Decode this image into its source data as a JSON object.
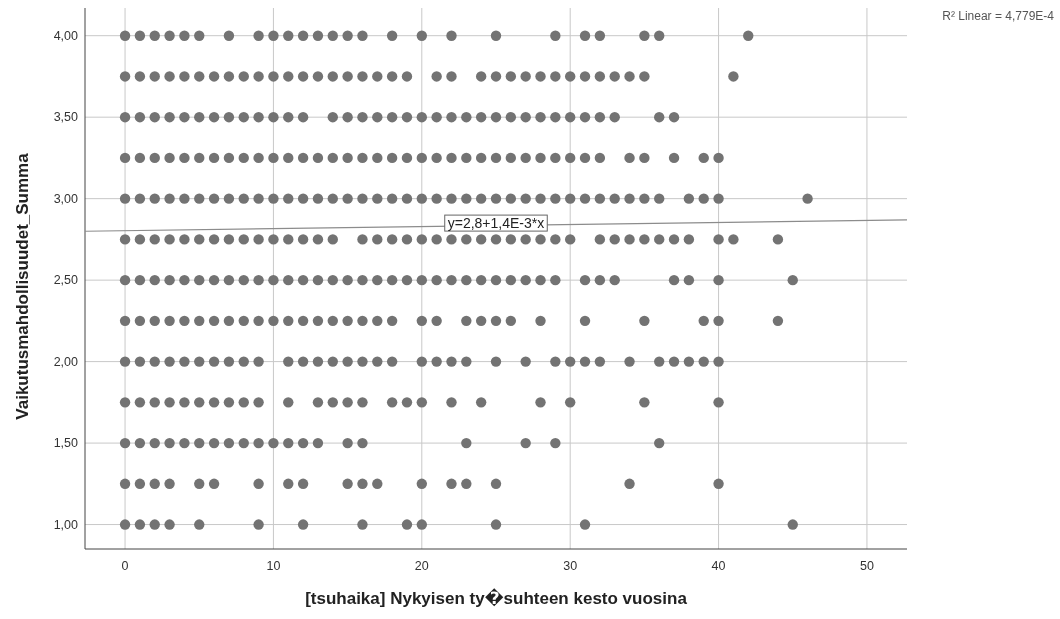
{
  "chart_data": {
    "type": "scatter",
    "xlabel": "[tsuhaika] Nykyisen ty�suhteen kesto vuosina",
    "ylabel": "Vaikutusmahdollisuudet_Summa",
    "xlim": [
      -2.7,
      52.7
    ],
    "ylim": [
      0.85,
      4.17
    ],
    "xticks": [
      0,
      10,
      20,
      30,
      40,
      50
    ],
    "yticks": [
      {
        "value": 1,
        "label": "1,00"
      },
      {
        "value": 1.5,
        "label": "1,50"
      },
      {
        "value": 2,
        "label": "2,00"
      },
      {
        "value": 2.5,
        "label": "2,50"
      },
      {
        "value": 3,
        "label": "3,00"
      },
      {
        "value": 3.5,
        "label": "3,50"
      },
      {
        "value": 4,
        "label": "4,00"
      }
    ],
    "grid": true,
    "marker": "circle",
    "annotations": [
      {
        "text": "y=2,8+1,4E-3*x",
        "x": 25,
        "y": 2.85
      },
      "R² Linear = 4,779E-4"
    ],
    "series": [
      {
        "color": "#737373",
        "x": [
          0,
          1,
          2,
          3,
          4,
          5,
          7,
          9,
          10,
          11,
          12,
          13,
          14,
          15,
          16,
          18,
          20,
          22,
          25,
          29,
          31,
          32,
          35,
          36,
          42,
          0,
          1,
          2,
          3,
          4,
          5,
          6,
          7,
          8,
          9,
          10,
          11,
          12,
          13,
          14,
          15,
          16,
          17,
          18,
          19,
          21,
          22,
          24,
          25,
          26,
          27,
          28,
          29,
          30,
          31,
          32,
          33,
          34,
          35,
          41,
          0,
          1,
          2,
          3,
          4,
          5,
          6,
          7,
          8,
          9,
          10,
          11,
          12,
          14,
          15,
          16,
          17,
          18,
          19,
          20,
          21,
          22,
          23,
          24,
          25,
          26,
          27,
          28,
          29,
          30,
          31,
          32,
          33,
          36,
          37,
          0,
          1,
          2,
          3,
          4,
          5,
          6,
          7,
          8,
          9,
          10,
          11,
          12,
          13,
          14,
          15,
          16,
          17,
          18,
          19,
          20,
          21,
          22,
          23,
          24,
          25,
          26,
          27,
          28,
          29,
          30,
          31,
          32,
          34,
          35,
          37,
          39,
          40,
          0,
          1,
          2,
          3,
          4,
          5,
          6,
          7,
          8,
          9,
          10,
          11,
          12,
          13,
          14,
          15,
          16,
          17,
          18,
          19,
          20,
          21,
          22,
          23,
          24,
          25,
          26,
          27,
          28,
          29,
          30,
          31,
          32,
          33,
          34,
          35,
          36,
          38,
          39,
          40,
          46,
          0,
          1,
          2,
          3,
          4,
          5,
          6,
          7,
          8,
          9,
          10,
          11,
          12,
          13,
          14,
          16,
          17,
          18,
          19,
          20,
          21,
          22,
          23,
          24,
          25,
          26,
          27,
          28,
          29,
          30,
          32,
          33,
          34,
          35,
          36,
          37,
          38,
          40,
          41,
          44,
          0,
          1,
          2,
          3,
          4,
          5,
          6,
          7,
          8,
          9,
          10,
          11,
          12,
          13,
          14,
          15,
          16,
          17,
          18,
          19,
          20,
          21,
          22,
          23,
          24,
          25,
          26,
          27,
          28,
          29,
          31,
          32,
          33,
          37,
          38,
          40,
          45,
          0,
          1,
          2,
          3,
          4,
          5,
          6,
          7,
          8,
          9,
          10,
          11,
          12,
          13,
          14,
          15,
          16,
          17,
          18,
          20,
          21,
          23,
          24,
          25,
          26,
          28,
          31,
          35,
          39,
          40,
          44,
          0,
          1,
          2,
          3,
          4,
          5,
          6,
          7,
          8,
          9,
          11,
          12,
          13,
          14,
          15,
          16,
          17,
          18,
          20,
          21,
          22,
          23,
          25,
          27,
          29,
          30,
          31,
          32,
          34,
          36,
          37,
          38,
          39,
          40,
          0,
          1,
          2,
          3,
          4,
          5,
          6,
          7,
          8,
          9,
          11,
          13,
          14,
          15,
          16,
          18,
          19,
          20,
          22,
          24,
          28,
          30,
          35,
          40,
          0,
          1,
          2,
          3,
          4,
          5,
          6,
          7,
          8,
          9,
          10,
          11,
          12,
          13,
          15,
          16,
          23,
          27,
          29,
          36,
          0,
          1,
          2,
          3,
          5,
          6,
          9,
          11,
          12,
          15,
          16,
          17,
          20,
          22,
          23,
          25,
          34,
          40,
          0,
          1,
          2,
          3,
          5,
          9,
          12,
          16,
          19,
          20,
          25,
          31,
          45
        ],
        "values": [
          4,
          4,
          4,
          4,
          4,
          4,
          4,
          4,
          4,
          4,
          4,
          4,
          4,
          4,
          4,
          4,
          4,
          4,
          4,
          4,
          4,
          4,
          4,
          4,
          4,
          3.75,
          3.75,
          3.75,
          3.75,
          3.75,
          3.75,
          3.75,
          3.75,
          3.75,
          3.75,
          3.75,
          3.75,
          3.75,
          3.75,
          3.75,
          3.75,
          3.75,
          3.75,
          3.75,
          3.75,
          3.75,
          3.75,
          3.75,
          3.75,
          3.75,
          3.75,
          3.75,
          3.75,
          3.75,
          3.75,
          3.75,
          3.75,
          3.75,
          3.75,
          3.75,
          3.5,
          3.5,
          3.5,
          3.5,
          3.5,
          3.5,
          3.5,
          3.5,
          3.5,
          3.5,
          3.5,
          3.5,
          3.5,
          3.5,
          3.5,
          3.5,
          3.5,
          3.5,
          3.5,
          3.5,
          3.5,
          3.5,
          3.5,
          3.5,
          3.5,
          3.5,
          3.5,
          3.5,
          3.5,
          3.5,
          3.5,
          3.5,
          3.5,
          3.5,
          3.5,
          3.25,
          3.25,
          3.25,
          3.25,
          3.25,
          3.25,
          3.25,
          3.25,
          3.25,
          3.25,
          3.25,
          3.25,
          3.25,
          3.25,
          3.25,
          3.25,
          3.25,
          3.25,
          3.25,
          3.25,
          3.25,
          3.25,
          3.25,
          3.25,
          3.25,
          3.25,
          3.25,
          3.25,
          3.25,
          3.25,
          3.25,
          3.25,
          3.25,
          3.25,
          3.25,
          3.25,
          3.25,
          3.25,
          3,
          3,
          3,
          3,
          3,
          3,
          3,
          3,
          3,
          3,
          3,
          3,
          3,
          3,
          3,
          3,
          3,
          3,
          3,
          3,
          3,
          3,
          3,
          3,
          3,
          3,
          3,
          3,
          3,
          3,
          3,
          3,
          3,
          3,
          3,
          3,
          3,
          3,
          3,
          3,
          3,
          2.75,
          2.75,
          2.75,
          2.75,
          2.75,
          2.75,
          2.75,
          2.75,
          2.75,
          2.75,
          2.75,
          2.75,
          2.75,
          2.75,
          2.75,
          2.75,
          2.75,
          2.75,
          2.75,
          2.75,
          2.75,
          2.75,
          2.75,
          2.75,
          2.75,
          2.75,
          2.75,
          2.75,
          2.75,
          2.75,
          2.75,
          2.75,
          2.75,
          2.75,
          2.75,
          2.75,
          2.75,
          2.75,
          2.75,
          2.75,
          2.5,
          2.5,
          2.5,
          2.5,
          2.5,
          2.5,
          2.5,
          2.5,
          2.5,
          2.5,
          2.5,
          2.5,
          2.5,
          2.5,
          2.5,
          2.5,
          2.5,
          2.5,
          2.5,
          2.5,
          2.5,
          2.5,
          2.5,
          2.5,
          2.5,
          2.5,
          2.5,
          2.5,
          2.5,
          2.5,
          2.5,
          2.5,
          2.5,
          2.5,
          2.5,
          2.5,
          2.5,
          2.25,
          2.25,
          2.25,
          2.25,
          2.25,
          2.25,
          2.25,
          2.25,
          2.25,
          2.25,
          2.25,
          2.25,
          2.25,
          2.25,
          2.25,
          2.25,
          2.25,
          2.25,
          2.25,
          2.25,
          2.25,
          2.25,
          2.25,
          2.25,
          2.25,
          2.25,
          2.25,
          2.25,
          2.25,
          2.25,
          2.25,
          2,
          2,
          2,
          2,
          2,
          2,
          2,
          2,
          2,
          2,
          2,
          2,
          2,
          2,
          2,
          2,
          2,
          2,
          2,
          2,
          2,
          2,
          2,
          2,
          2,
          2,
          2,
          2,
          2,
          2,
          2,
          2,
          2,
          2,
          1.75,
          1.75,
          1.75,
          1.75,
          1.75,
          1.75,
          1.75,
          1.75,
          1.75,
          1.75,
          1.75,
          1.75,
          1.75,
          1.75,
          1.75,
          1.75,
          1.75,
          1.75,
          1.75,
          1.75,
          1.75,
          1.75,
          1.75,
          1.75,
          1.5,
          1.5,
          1.5,
          1.5,
          1.5,
          1.5,
          1.5,
          1.5,
          1.5,
          1.5,
          1.5,
          1.5,
          1.5,
          1.5,
          1.5,
          1.5,
          1.5,
          1.5,
          1.5,
          1.5,
          1.25,
          1.25,
          1.25,
          1.25,
          1.25,
          1.25,
          1.25,
          1.25,
          1.25,
          1.25,
          1.25,
          1.25,
          1.25,
          1.25,
          1.25,
          1.25,
          1.25,
          1.25,
          1,
          1,
          1,
          1,
          1,
          1,
          1,
          1,
          1,
          1,
          1,
          1,
          1
        ]
      },
      {
        "type": "line",
        "color": "#8c8c8c",
        "marker": "none",
        "x": [
          -2.7,
          52.7
        ],
        "values": [
          2.8,
          2.87
        ]
      }
    ]
  }
}
